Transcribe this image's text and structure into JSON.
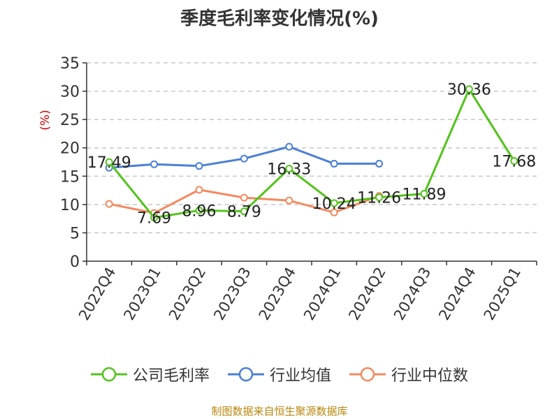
{
  "chart_data": {
    "type": "line",
    "title": "季度毛利率变化情况(%)",
    "ylabel": "(%)",
    "categories": [
      "2022Q4",
      "2023Q1",
      "2023Q2",
      "2023Q3",
      "2023Q4",
      "2024Q1",
      "2024Q2",
      "2024Q3",
      "2024Q4",
      "2025Q1"
    ],
    "ylim": [
      0,
      35
    ],
    "yticks": [
      0,
      5,
      10,
      15,
      20,
      25,
      30,
      35
    ],
    "grid": true,
    "legend_position": "bottom",
    "series": [
      {
        "name": "公司毛利率",
        "color": "#52c41a",
        "values": [
          17.49,
          7.69,
          8.96,
          8.79,
          16.33,
          10.24,
          11.26,
          11.89,
          30.36,
          17.68
        ],
        "labels": [
          "17.49",
          "7.69",
          "8.96",
          "8.79",
          "16.33",
          "10.24",
          "11.26",
          "11.89",
          "30.36",
          "17.68"
        ]
      },
      {
        "name": "行业均值",
        "color": "#4a7fd6",
        "values": [
          16.5,
          17.1,
          16.8,
          18.1,
          20.2,
          17.2,
          17.2,
          null,
          null,
          null
        ]
      },
      {
        "name": "行业中位数",
        "color": "#f4895f",
        "values": [
          10.1,
          8.5,
          12.6,
          11.2,
          10.7,
          8.6,
          11.5,
          null,
          null,
          null
        ]
      }
    ]
  },
  "footer": {
    "source": "制图数据来自恒生聚源数据库"
  }
}
